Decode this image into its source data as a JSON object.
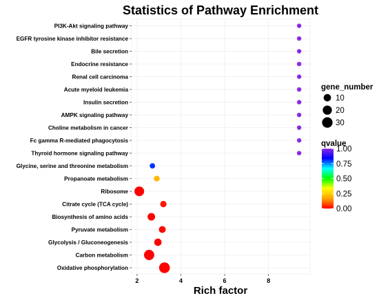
{
  "chart_data": {
    "type": "scatter",
    "title": "Statistics of Pathway Enrichment",
    "xlabel": "Rich factor",
    "ylabel": "",
    "xlim": [
      1.75,
      9.9
    ],
    "xticks": [
      2,
      4,
      6,
      8
    ],
    "grid": true,
    "points": [
      {
        "pathway": "PI3K-Akt signaling pathway",
        "rich_factor": 9.4,
        "gene_number": 1,
        "qvalue": 1.0
      },
      {
        "pathway": "EGFR tyrosine kinase inhibitor resistance",
        "rich_factor": 9.4,
        "gene_number": 1,
        "qvalue": 1.0
      },
      {
        "pathway": "Bile secretion",
        "rich_factor": 9.4,
        "gene_number": 1,
        "qvalue": 1.0
      },
      {
        "pathway": "Endocrine resistance",
        "rich_factor": 9.4,
        "gene_number": 1,
        "qvalue": 1.0
      },
      {
        "pathway": "Renal cell carcinoma",
        "rich_factor": 9.4,
        "gene_number": 1,
        "qvalue": 1.0
      },
      {
        "pathway": "Acute myeloid leukemia",
        "rich_factor": 9.4,
        "gene_number": 1,
        "qvalue": 1.0
      },
      {
        "pathway": "Insulin secretion",
        "rich_factor": 9.4,
        "gene_number": 1,
        "qvalue": 1.0
      },
      {
        "pathway": "AMPK signaling pathway",
        "rich_factor": 9.4,
        "gene_number": 1,
        "qvalue": 1.0
      },
      {
        "pathway": "Choline metabolism in cancer",
        "rich_factor": 9.4,
        "gene_number": 1,
        "qvalue": 1.0
      },
      {
        "pathway": "Fc gamma R-mediated phagocytosis",
        "rich_factor": 9.4,
        "gene_number": 1,
        "qvalue": 1.0
      },
      {
        "pathway": "Thyroid hormone signaling pathway",
        "rich_factor": 9.4,
        "gene_number": 1,
        "qvalue": 1.0
      },
      {
        "pathway": "Glycine, serine and threonine metabolism",
        "rich_factor": 2.7,
        "gene_number": 3,
        "qvalue": 0.8
      },
      {
        "pathway": "Propanoate metabolism",
        "rich_factor": 2.9,
        "gene_number": 4,
        "qvalue": 0.2
      },
      {
        "pathway": "Ribosome",
        "rich_factor": 2.1,
        "gene_number": 24,
        "qvalue": 0.0
      },
      {
        "pathway": "Citrate cycle (TCA cycle)",
        "rich_factor": 3.2,
        "gene_number": 6,
        "qvalue": 0.02
      },
      {
        "pathway": "Biosynthesis of amino acids",
        "rich_factor": 2.65,
        "gene_number": 11,
        "qvalue": 0.0
      },
      {
        "pathway": "Pyruvate metabolism",
        "rich_factor": 3.15,
        "gene_number": 8,
        "qvalue": 0.01
      },
      {
        "pathway": "Glycolysis / Gluconeogenesis",
        "rich_factor": 2.95,
        "gene_number": 10,
        "qvalue": 0.0
      },
      {
        "pathway": "Carbon metabolism",
        "rich_factor": 2.55,
        "gene_number": 28,
        "qvalue": 0.0
      },
      {
        "pathway": "Oxidative phosphorylation",
        "rich_factor": 3.25,
        "gene_number": 32,
        "qvalue": 0.0
      }
    ],
    "legend": {
      "size_title": "gene_number",
      "size_values": [
        10,
        20,
        30
      ],
      "color_title": "qvalue",
      "color_ticks": [
        1.0,
        0.75,
        0.5,
        0.25,
        0.0
      ],
      "color_tick_labels": [
        "1.00",
        "0.75",
        "0.50",
        "0.25",
        "0.00"
      ],
      "color_scale": [
        "#ff0000",
        "#ffa500",
        "#ffff00",
        "#00ff00",
        "#00ffff",
        "#0000ff",
        "#8a2be2"
      ],
      "placement": "right"
    }
  }
}
